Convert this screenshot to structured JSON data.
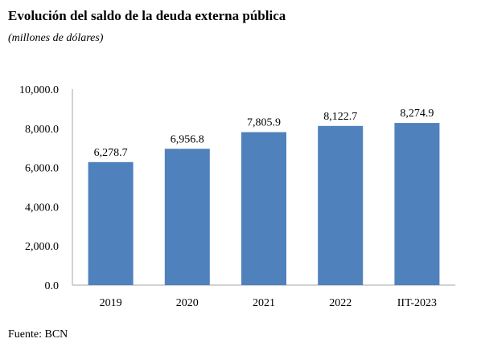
{
  "title": "Evolución del saldo de la deuda externa pública",
  "subtitle": "(millones de dólares)",
  "source": "Fuente: BCN",
  "colors": {
    "bar": "#4f81bd",
    "axis": "#a6a6a6",
    "text": "#000000"
  },
  "chart_data": {
    "type": "bar",
    "categories": [
      "2019",
      "2020",
      "2021",
      "2022",
      "IIT-2023"
    ],
    "values": [
      6278.7,
      6956.8,
      7805.9,
      8122.7,
      8274.9
    ],
    "data_labels": [
      "6,278.7",
      "6,956.8",
      "7,805.9",
      "8,122.7",
      "8,274.9"
    ],
    "yticks": [
      0,
      2000,
      4000,
      6000,
      8000,
      10000
    ],
    "ytick_labels": [
      "0.0",
      "2,000.0",
      "4,000.0",
      "6,000.0",
      "8,000.0",
      "10,000.0"
    ],
    "ylim": [
      0,
      10000
    ],
    "grid": false,
    "legend": "none"
  }
}
